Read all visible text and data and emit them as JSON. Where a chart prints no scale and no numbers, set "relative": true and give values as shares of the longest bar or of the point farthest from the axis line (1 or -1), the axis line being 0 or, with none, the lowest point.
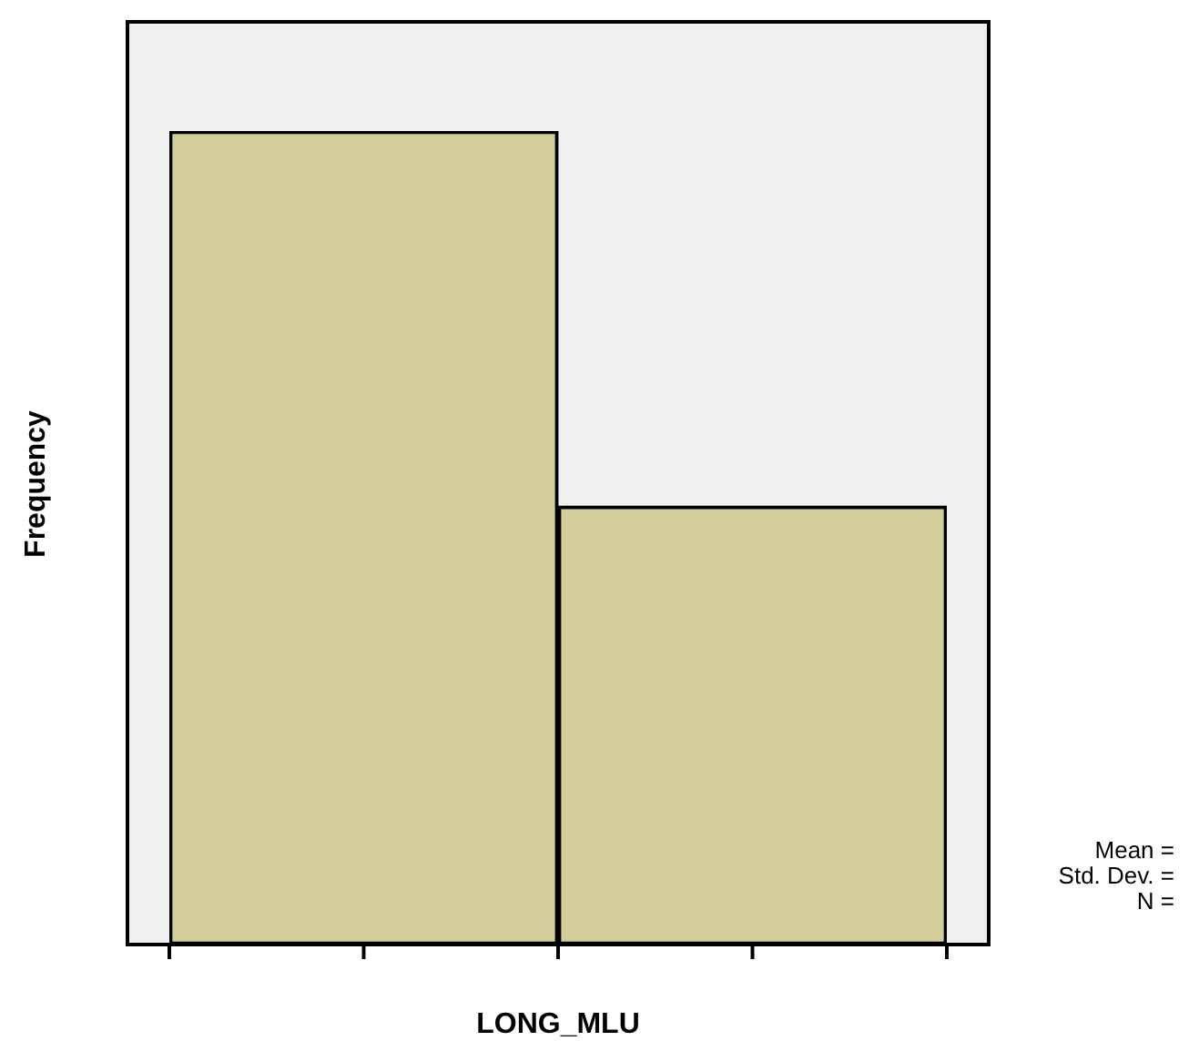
{
  "chart_data": {
    "type": "bar",
    "relative": true,
    "categories": [
      null,
      null
    ],
    "values": [
      1,
      0.539
    ],
    "color": "#d3ce99",
    "xlabel": "LONG_MLU",
    "ylabel": "Frequency",
    "annotations": [
      "Mean =",
      "Std. Dev. =",
      "N ="
    ]
  }
}
